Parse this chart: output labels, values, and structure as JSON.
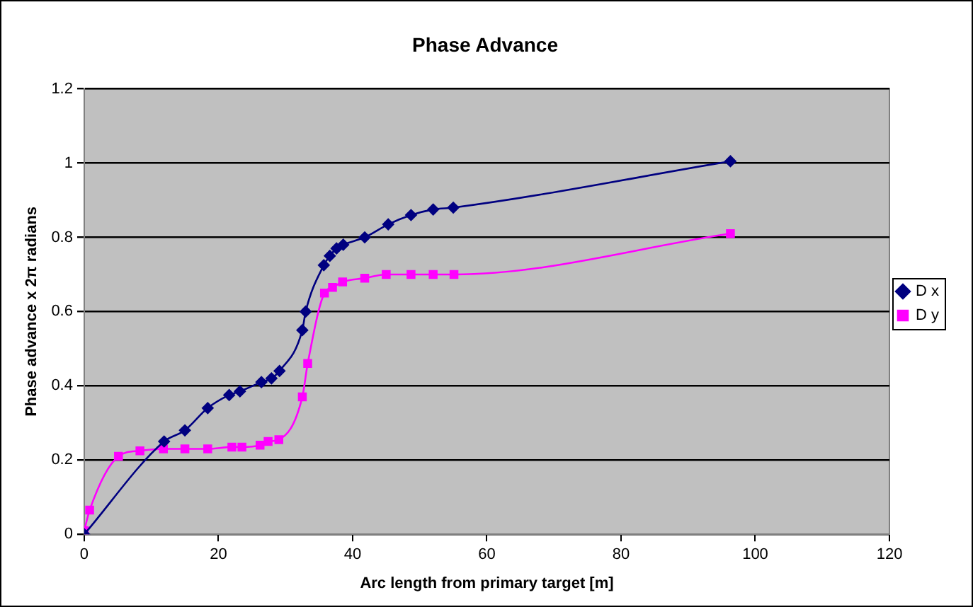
{
  "chart_data": {
    "type": "line",
    "title": "Phase Advance",
    "xlabel": "Arc length from primary target [m]",
    "ylabel": "Phase advance x 2π radians",
    "xlim": [
      0,
      120
    ],
    "xticks": [
      0,
      20,
      40,
      60,
      80,
      100,
      120
    ],
    "ylim": [
      0,
      1.2
    ],
    "yticks": [
      0,
      0.2,
      0.4,
      0.6,
      0.8,
      1,
      1.2
    ],
    "grid": "y",
    "legend": "right",
    "line_style": "solid",
    "series": [
      {
        "name": "D x",
        "color": "#000080",
        "marker": "diamond",
        "x": [
          0,
          11.9,
          15,
          18.4,
          21.6,
          23.2,
          26.4,
          27.9,
          29.1,
          32.5,
          33,
          35.7,
          36.6,
          37.6,
          38.6,
          41.8,
          45.3,
          48.7,
          52,
          55,
          96.3
        ],
        "values": [
          0,
          0.25,
          0.28,
          0.34,
          0.375,
          0.385,
          0.41,
          0.42,
          0.44,
          0.55,
          0.6,
          0.725,
          0.75,
          0.77,
          0.78,
          0.8,
          0.835,
          0.86,
          0.875,
          0.88,
          1.005
        ]
      },
      {
        "name": "D y",
        "color": "#ff00ff",
        "marker": "square",
        "x": [
          0,
          0.8,
          5.1,
          8.3,
          11.8,
          15,
          18.4,
          22,
          23.5,
          26.2,
          27.4,
          29,
          32.5,
          33.3,
          35.8,
          37,
          38.5,
          41.8,
          45,
          48.7,
          52,
          55.1,
          96.3
        ],
        "values": [
          0.01,
          0.065,
          0.21,
          0.225,
          0.23,
          0.23,
          0.23,
          0.235,
          0.235,
          0.24,
          0.25,
          0.255,
          0.37,
          0.46,
          0.65,
          0.665,
          0.68,
          0.69,
          0.7,
          0.7,
          0.7,
          0.7,
          0.81
        ]
      }
    ]
  }
}
